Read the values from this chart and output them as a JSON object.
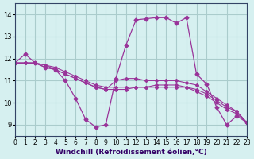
{
  "xlabel": "Windchill (Refroidissement éolien,°C)",
  "ylabel": "",
  "background_color": "#d6f0f0",
  "line_color": "#993399",
  "grid_color": "#aacccc",
  "xlim": [
    0,
    23
  ],
  "ylim": [
    8.5,
    14.5
  ],
  "yticks": [
    9,
    10,
    11,
    12,
    13,
    14
  ],
  "xticks": [
    0,
    1,
    2,
    3,
    4,
    5,
    6,
    7,
    8,
    9,
    10,
    11,
    12,
    13,
    14,
    15,
    16,
    17,
    18,
    19,
    20,
    21,
    22,
    23
  ],
  "series": [
    [
      11.8,
      12.2,
      11.8,
      11.6,
      11.5,
      11.0,
      10.2,
      9.25,
      8.9,
      9.0,
      11.1,
      12.6,
      13.75,
      13.8,
      13.85,
      13.85,
      13.6,
      13.85,
      11.3,
      10.85,
      9.8,
      9.0,
      9.4,
      9.1
    ],
    [
      11.8,
      11.8,
      11.8,
      11.6,
      11.5,
      11.3,
      11.1,
      10.9,
      10.7,
      10.6,
      11.0,
      11.1,
      11.1,
      11.0,
      11.0,
      11.0,
      11.0,
      10.9,
      10.8,
      10.5,
      10.2,
      9.9,
      9.6,
      9.1
    ],
    [
      11.8,
      11.8,
      11.8,
      11.7,
      11.5,
      11.3,
      11.1,
      10.9,
      10.7,
      10.6,
      10.6,
      10.6,
      10.7,
      10.7,
      10.7,
      10.7,
      10.7,
      10.7,
      10.5,
      10.3,
      10.0,
      9.7,
      9.5,
      9.1
    ],
    [
      11.8,
      11.8,
      11.8,
      11.7,
      11.6,
      11.4,
      11.2,
      11.0,
      10.8,
      10.7,
      10.7,
      10.7,
      10.7,
      10.7,
      10.8,
      10.8,
      10.8,
      10.7,
      10.6,
      10.4,
      10.1,
      9.8,
      9.6,
      9.1
    ]
  ]
}
